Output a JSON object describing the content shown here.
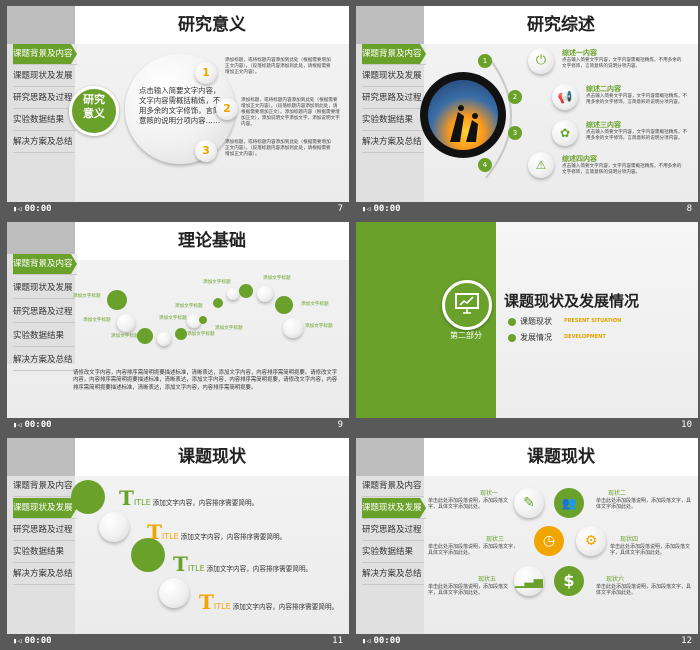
{
  "colors": {
    "accent": "#6aa12b",
    "orange": "#f0a500",
    "dark": "#595959"
  },
  "footer_time": "00:00",
  "nav_items": [
    "课题背景及内容",
    "课题现状及发展",
    "研究思路及过程",
    "实验数据结果",
    "解决方案及总结"
  ],
  "slides": [
    {
      "page": "7",
      "title": "研究意义",
      "badge": "研究\n意义",
      "center_text": "点击输入简要文字内容，文字内容需概括精炼，不用多余的文字修饰，言简意赅的说明分项内容……",
      "numbers": [
        "1",
        "2",
        "3"
      ],
      "items": [
        "添加标题，或将标题内容添加到此处（根据需要增加正文内容）。（段落标题内容添加到此处，请根据需要增加正文内容）。",
        "添加标题，或将标题内容添加到此处（根据需要增加正文内容）。（段落标题内容添加到此处，请根据需要增加正文）。添加标题内容（根据需要增加正文），添加说明文字添加文字，添加说明文字内容。",
        "添加标题，或将标题内容添加到此处（根据需要增加正文内容）。（段落标题内容添加到此处，请根据需要增加正文内容）。"
      ]
    },
    {
      "page": "8",
      "title": "研究综述",
      "numbers": [
        "1",
        "2",
        "3",
        "4"
      ],
      "items": [
        {
          "head": "综述一内容",
          "body": "点击输入简要文字内容，文字内容需概括精炼，不用多余的文字修饰，言简意赅的说明分项内容。"
        },
        {
          "head": "综述二内容",
          "body": "点击输入简要文字内容，文字内容需概括精炼，不用多余的文字修饰，言简意赅的说明分项内容。"
        },
        {
          "head": "综述三内容",
          "body": "点击输入简要文字内容，文字内容需概括精炼，不用多余的文字修饰，言简意赅的说明分项内容。"
        },
        {
          "head": "综述四内容",
          "body": "点击输入简要文字内容，文字内容需概括精炼，不用多余的文字修饰，言简意赅的说明分项内容。"
        }
      ]
    },
    {
      "page": "9",
      "title": "理论基础",
      "node_label": "添加文字标题",
      "body": "请修改文字内容，内容排序需简明扼要描述标准，清晰表达，添加文字内容，内容排序需简明扼要。请修改文字内容，内容排序需简明扼要描述标准，清晰表达，添加文字内容，内容排序需简明扼要，请修改文字内容，内容排序需简明扼要描述标准，清晰表达，添加文字内容，内容排序需简明扼要。"
    },
    {
      "page": "10",
      "part": "第二部分",
      "title": "课题现状及发展情况",
      "bullets": [
        {
          "cn": "课题现状",
          "en": "PRESENT SITUATION"
        },
        {
          "cn": "发展情况",
          "en": "DEVELOPMENT"
        }
      ]
    },
    {
      "page": "11",
      "title": "课题现状",
      "items": [
        {
          "t": "T",
          "rest": "ITLE",
          "text": "添加文字内容，内容排序需要简明。"
        },
        {
          "t": "T",
          "rest": "ITLE",
          "text": "添加文字内容，内容排序需要简明。"
        },
        {
          "t": "T",
          "rest": "ITLE",
          "text": "添加文字内容，内容排序需要简明。"
        },
        {
          "t": "T",
          "rest": "ITLE",
          "text": "添加文字内容，内容排序需要简明。"
        }
      ]
    },
    {
      "page": "12",
      "title": "课题现状",
      "items": [
        {
          "head": "现状一",
          "body": "单击此处添加段落说明，添加段落文字，具体文字添加此处。"
        },
        {
          "head": "现状二",
          "body": "单击此处添加段落说明，添加段落文字，具体文字添加此处。"
        },
        {
          "head": "现状三",
          "body": "单击此处添加段落说明，添加段落文字，具体文字添加此处。"
        },
        {
          "head": "现状四",
          "body": "单击此处添加段落说明，添加段落文字，具体文字添加此处。"
        },
        {
          "head": "现状五",
          "body": "单击此处添加段落说明，添加段落文字，具体文字添加此处。"
        },
        {
          "head": "现状六",
          "body": "单击此处添加段落说明，添加段落文字，具体文字添加此处。"
        }
      ]
    }
  ]
}
